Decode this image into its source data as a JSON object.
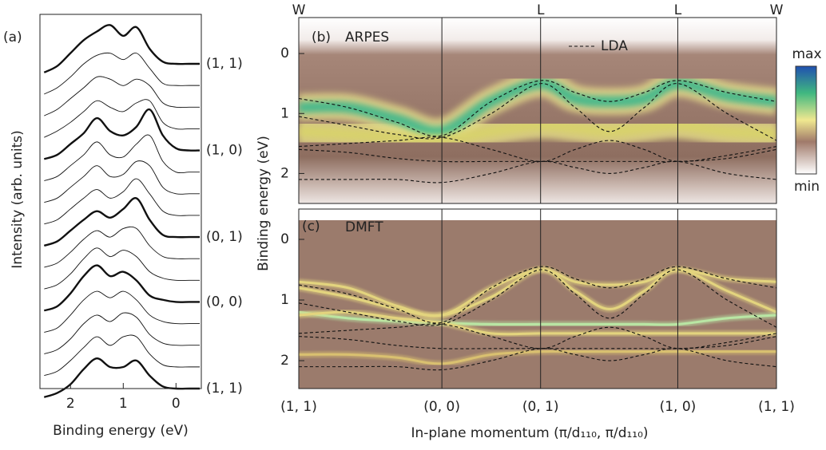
{
  "chart_data": [
    {
      "type": "line",
      "panel": "(a)",
      "xlabel": "Binding energy (eV)",
      "ylabel": "Intensity (arb. units)",
      "xlim": [
        2.58,
        -0.48
      ],
      "xticks": [
        2,
        1,
        0
      ],
      "x": [
        2.5,
        2.25,
        2.0,
        1.75,
        1.5,
        1.25,
        1.0,
        0.75,
        0.5,
        0.25,
        0,
        -0.25,
        -0.45
      ],
      "curves": [
        {
          "name": "(1, 1)",
          "bold": true,
          "values": [
            0.1,
            0.4,
            1.0,
            1.6,
            2.0,
            2.3,
            1.8,
            2.2,
            1.2,
            0.6,
            0.5,
            0.5,
            0.5
          ]
        },
        {
          "values": [
            0.1,
            0.4,
            0.9,
            1.5,
            1.9,
            2.0,
            1.7,
            2.0,
            1.3,
            0.6,
            0.5,
            0.5,
            0.5
          ]
        },
        {
          "values": [
            0.1,
            0.4,
            0.9,
            1.4,
            1.9,
            1.8,
            1.5,
            1.8,
            1.5,
            0.7,
            0.5,
            0.5,
            0.5
          ]
        },
        {
          "values": [
            0.1,
            0.4,
            0.8,
            1.3,
            1.8,
            1.5,
            1.3,
            1.7,
            1.8,
            0.8,
            0.5,
            0.5,
            0.5
          ]
        },
        {
          "name": "(1, 0)",
          "bold": true,
          "values": [
            0.1,
            0.3,
            0.8,
            1.3,
            2.0,
            1.4,
            1.2,
            1.6,
            2.4,
            1.2,
            0.6,
            0.5,
            0.5
          ]
        },
        {
          "values": [
            0.1,
            0.3,
            0.8,
            1.3,
            1.9,
            1.3,
            1.2,
            1.8,
            2.2,
            1.0,
            0.5,
            0.5,
            0.5
          ]
        },
        {
          "values": [
            0.1,
            0.3,
            0.8,
            1.3,
            1.8,
            1.3,
            1.4,
            2.0,
            1.8,
            0.8,
            0.5,
            0.5,
            0.5
          ]
        },
        {
          "values": [
            0.1,
            0.3,
            0.8,
            1.3,
            1.7,
            1.3,
            1.6,
            2.2,
            1.5,
            0.7,
            0.5,
            0.5,
            0.5
          ]
        },
        {
          "name": "(0, 1)",
          "bold": true,
          "values": [
            0.1,
            0.3,
            0.8,
            1.3,
            1.7,
            1.4,
            1.8,
            2.3,
            1.3,
            0.6,
            0.5,
            0.5,
            0.5
          ]
        },
        {
          "values": [
            0.1,
            0.3,
            0.8,
            1.4,
            1.8,
            1.5,
            1.9,
            1.9,
            1.1,
            0.6,
            0.5,
            0.5,
            0.5
          ]
        },
        {
          "values": [
            0.1,
            0.3,
            0.8,
            1.5,
            2.0,
            1.6,
            1.9,
            1.6,
            0.9,
            0.6,
            0.5,
            0.5,
            0.5
          ]
        },
        {
          "name": "(0, 0)",
          "bold": true,
          "values": [
            0.1,
            0.3,
            0.9,
            1.7,
            2.2,
            1.7,
            1.9,
            1.5,
            0.8,
            0.6,
            0.5,
            0.5,
            0.5
          ]
        },
        {
          "values": [
            0.1,
            0.3,
            0.9,
            1.6,
            2.0,
            1.7,
            2.0,
            1.6,
            0.9,
            0.6,
            0.5,
            0.5,
            0.5
          ]
        },
        {
          "values": [
            0.1,
            0.3,
            0.8,
            1.5,
            1.9,
            1.6,
            2.0,
            1.8,
            1.0,
            0.6,
            0.5,
            0.5,
            0.5
          ]
        },
        {
          "values": [
            0.1,
            0.3,
            0.8,
            1.4,
            1.9,
            1.5,
            1.9,
            1.9,
            1.1,
            0.6,
            0.5,
            0.5,
            0.5
          ]
        },
        {
          "name": "(1, 1)",
          "bold": true,
          "values": [
            0.1,
            0.3,
            0.7,
            1.4,
            1.9,
            1.5,
            1.5,
            1.8,
            1.1,
            0.6,
            0.5,
            0.5,
            0.5
          ]
        }
      ]
    },
    {
      "type": "heatmap",
      "panel": "(b)",
      "title": "ARPES",
      "ylabel": "Binding energy (eV)",
      "ylim": [
        2.5,
        -0.6
      ],
      "yticks": [
        0,
        1,
        2
      ],
      "xlim": [
        0,
        4.84
      ],
      "top_ticks": [
        {
          "value": 0,
          "label": "W"
        },
        {
          "value": 2.45,
          "label": "L"
        },
        {
          "value": 3.84,
          "label": "L"
        },
        {
          "value": 4.84,
          "label": "W"
        }
      ],
      "x": [
        0,
        0.5,
        1.0,
        1.45,
        1.95,
        2.45,
        2.8,
        3.15,
        3.5,
        3.84,
        4.34,
        4.84
      ],
      "bands": [
        {
          "color": "#3cb88c",
          "values": [
            0.9,
            0.9,
            1.1,
            1.3,
            0.8,
            0.5,
            0.75,
            0.8,
            0.75,
            0.5,
            0.7,
            0.8
          ]
        },
        {
          "color": "#d8d36a",
          "values": [
            1.3,
            1.35,
            1.4,
            1.45,
            1.3,
            1.2,
            1.25,
            1.3,
            1.25,
            1.2,
            1.3,
            1.35
          ]
        }
      ],
      "lda": {
        "name": "LDA",
        "color": "#111111",
        "bands": [
          [
            0.75,
            0.9,
            1.15,
            1.37,
            0.8,
            0.45,
            0.65,
            0.8,
            0.65,
            0.45,
            0.65,
            0.8
          ],
          [
            1.05,
            1.2,
            1.35,
            1.4,
            1.0,
            0.5,
            0.9,
            1.3,
            0.9,
            0.5,
            1.0,
            1.45
          ],
          [
            1.55,
            1.5,
            1.45,
            1.4,
            1.6,
            1.8,
            1.6,
            1.45,
            1.6,
            1.8,
            1.7,
            1.55
          ],
          [
            1.6,
            1.65,
            1.75,
            1.8,
            1.8,
            1.8,
            1.8,
            1.8,
            1.8,
            1.8,
            1.75,
            1.6
          ],
          [
            2.1,
            2.1,
            2.1,
            2.15,
            2.0,
            1.8,
            1.9,
            2.0,
            1.9,
            1.8,
            2.0,
            2.1
          ]
        ]
      },
      "colorbar": {
        "max_label": "max",
        "min_label": "min"
      }
    },
    {
      "type": "heatmap",
      "panel": "(c)",
      "title": "DMFT",
      "xlabel": "In-plane momentum (π/d₁₁₀, π/d₁₁₀)",
      "ylim": [
        2.46,
        -0.5
      ],
      "yticks": [
        0,
        1,
        2
      ],
      "xlim": [
        0,
        4.84
      ],
      "xticks": [
        {
          "value": 0,
          "label": "(1, 1)"
        },
        {
          "value": 1.45,
          "label": "(0, 0)"
        },
        {
          "value": 2.45,
          "label": "(0, 1)"
        },
        {
          "value": 3.84,
          "label": "(1, 0)"
        },
        {
          "value": 4.84,
          "label": "(1, 1)"
        }
      ],
      "x": [
        0,
        0.5,
        1.0,
        1.45,
        1.95,
        2.45,
        2.8,
        3.15,
        3.5,
        3.84,
        4.34,
        4.84
      ],
      "bands": [
        {
          "color": "#e3d47e",
          "values": [
            0.7,
            0.8,
            1.1,
            1.25,
            0.8,
            0.5,
            0.7,
            0.75,
            0.7,
            0.5,
            0.65,
            0.7
          ]
        },
        {
          "color": "#e3d47e",
          "values": [
            0.8,
            0.95,
            1.15,
            1.25,
            0.95,
            0.5,
            0.85,
            1.15,
            0.85,
            0.5,
            0.85,
            1.2
          ]
        },
        {
          "color": "#b9e6a4",
          "values": [
            1.2,
            1.3,
            1.35,
            1.38,
            1.4,
            1.4,
            1.4,
            1.4,
            1.4,
            1.4,
            1.3,
            1.25
          ]
        },
        {
          "color": "#e3d47e",
          "values": [
            1.25,
            1.2,
            1.3,
            1.38,
            1.55,
            1.55,
            1.55,
            1.55,
            1.55,
            1.55,
            1.55,
            1.55
          ]
        },
        {
          "color": "#d9c070",
          "values": [
            1.9,
            1.9,
            1.95,
            2.05,
            1.9,
            1.85,
            1.85,
            1.85,
            1.85,
            1.85,
            1.85,
            1.85
          ]
        }
      ],
      "lda_bands": [
        [
          0.75,
          0.9,
          1.15,
          1.37,
          0.8,
          0.45,
          0.65,
          0.8,
          0.65,
          0.45,
          0.65,
          0.8
        ],
        [
          1.05,
          1.2,
          1.35,
          1.4,
          1.0,
          0.5,
          0.9,
          1.3,
          0.9,
          0.5,
          1.0,
          1.45
        ],
        [
          1.55,
          1.5,
          1.45,
          1.4,
          1.6,
          1.8,
          1.6,
          1.45,
          1.6,
          1.8,
          1.7,
          1.55
        ],
        [
          1.6,
          1.65,
          1.75,
          1.8,
          1.8,
          1.8,
          1.8,
          1.8,
          1.8,
          1.8,
          1.75,
          1.6
        ],
        [
          2.1,
          2.1,
          2.1,
          2.15,
          2.0,
          1.8,
          1.9,
          2.0,
          1.9,
          1.8,
          2.0,
          2.1
        ]
      ]
    }
  ]
}
